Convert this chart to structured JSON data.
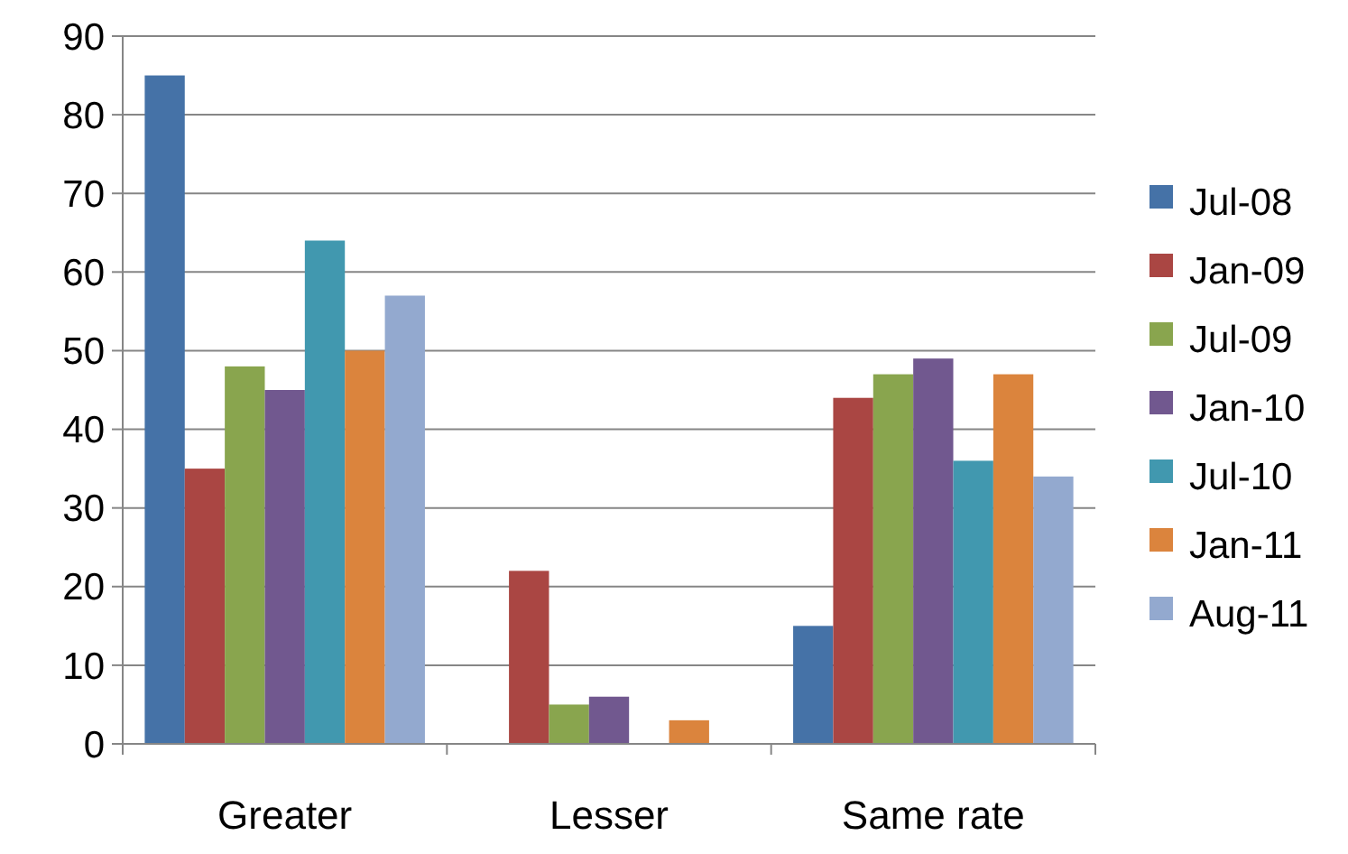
{
  "chart_data": {
    "type": "bar",
    "categories": [
      "Greater",
      "Lesser",
      "Same rate"
    ],
    "series": [
      {
        "name": "Jul-08",
        "color": "#4572a7",
        "values": [
          85,
          0,
          15
        ]
      },
      {
        "name": "Jan-09",
        "color": "#aa4643",
        "values": [
          35,
          22,
          44
        ]
      },
      {
        "name": "Jul-09",
        "color": "#89a54e",
        "values": [
          48,
          5,
          47
        ]
      },
      {
        "name": "Jan-10",
        "color": "#71588f",
        "values": [
          45,
          6,
          49
        ]
      },
      {
        "name": "Jul-10",
        "color": "#4198af",
        "values": [
          64,
          0,
          36
        ]
      },
      {
        "name": "Jan-11",
        "color": "#db843d",
        "values": [
          50,
          3,
          47
        ]
      },
      {
        "name": "Aug-11",
        "color": "#93a9cf",
        "values": [
          57,
          0,
          34
        ]
      }
    ],
    "ylim": [
      0,
      90
    ],
    "yticks": [
      0,
      10,
      20,
      30,
      40,
      50,
      60,
      70,
      80,
      90
    ],
    "grid": "y",
    "legend": "right"
  }
}
